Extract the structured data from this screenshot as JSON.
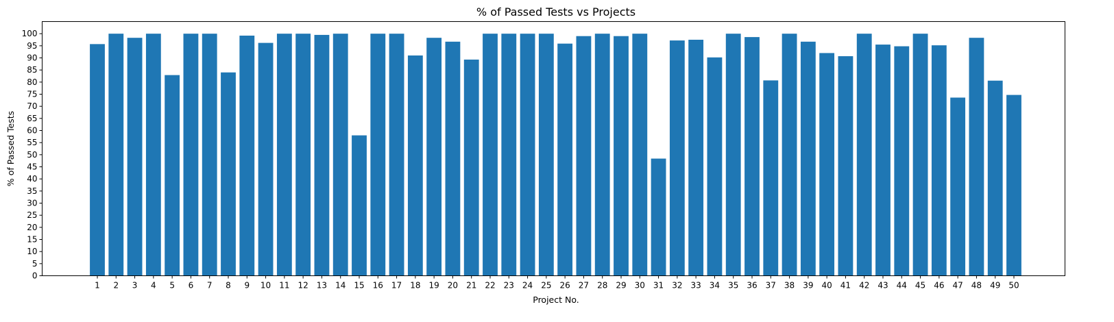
{
  "chart_data": {
    "type": "bar",
    "title": "% of Passed Tests vs Projects",
    "xlabel": "Project No.",
    "ylabel": "% of Passed Tests",
    "ylim": [
      0,
      105
    ],
    "yticks": [
      0,
      5,
      10,
      15,
      20,
      25,
      30,
      35,
      40,
      45,
      50,
      55,
      60,
      65,
      70,
      75,
      80,
      85,
      90,
      95,
      100
    ],
    "grid": false,
    "bar_color": "#1f77b4",
    "categories": [
      "1",
      "2",
      "3",
      "4",
      "5",
      "6",
      "7",
      "8",
      "9",
      "10",
      "11",
      "12",
      "13",
      "14",
      "15",
      "16",
      "17",
      "18",
      "19",
      "20",
      "21",
      "22",
      "23",
      "24",
      "25",
      "26",
      "27",
      "28",
      "29",
      "30",
      "31",
      "32",
      "33",
      "34",
      "35",
      "36",
      "37",
      "38",
      "39",
      "40",
      "41",
      "42",
      "43",
      "44",
      "45",
      "46",
      "47",
      "48",
      "49",
      "50"
    ],
    "values": [
      95.7,
      100,
      98.3,
      100,
      82.9,
      100,
      100,
      84,
      99.2,
      96.2,
      100,
      100,
      99.5,
      100,
      58,
      100,
      100,
      91,
      98.3,
      96.7,
      89.3,
      100,
      100,
      100,
      100,
      95.9,
      99,
      100,
      99,
      100,
      48.4,
      97.2,
      97.5,
      90.2,
      100,
      98.6,
      80.7,
      100,
      96.7,
      92,
      90.7,
      100,
      95.5,
      94.8,
      100,
      95.2,
      73.6,
      98.3,
      80.6,
      74.7
    ]
  }
}
